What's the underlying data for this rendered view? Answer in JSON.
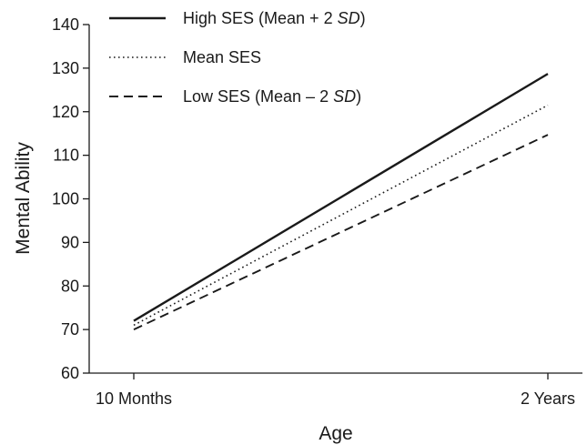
{
  "chart_data": {
    "type": "line",
    "title": "",
    "xlabel": "Age",
    "ylabel": "Mental Ability",
    "categories": [
      "10 Months",
      "2 Years"
    ],
    "ylim": [
      60,
      140
    ],
    "yticks": [
      60,
      70,
      80,
      90,
      100,
      110,
      120,
      130,
      140
    ],
    "grid": false,
    "legend_position": "top-left",
    "series": [
      {
        "name": "High SES (Mean + 2 SD)",
        "name_parts": {
          "before": "High SES (Mean + 2 ",
          "italic": "SD",
          "after": ")"
        },
        "line_style": "solid",
        "values": [
          72,
          128.7
        ]
      },
      {
        "name": "Mean SES",
        "name_parts": {
          "before": "Mean SES",
          "italic": "",
          "after": ""
        },
        "line_style": "dotted",
        "values": [
          71,
          121.5
        ]
      },
      {
        "name": "Low SES (Mean – 2 SD)",
        "name_parts": {
          "before": "Low SES (Mean – 2 ",
          "italic": "SD",
          "after": ")"
        },
        "line_style": "dashed",
        "values": [
          70,
          114.7
        ]
      }
    ]
  }
}
